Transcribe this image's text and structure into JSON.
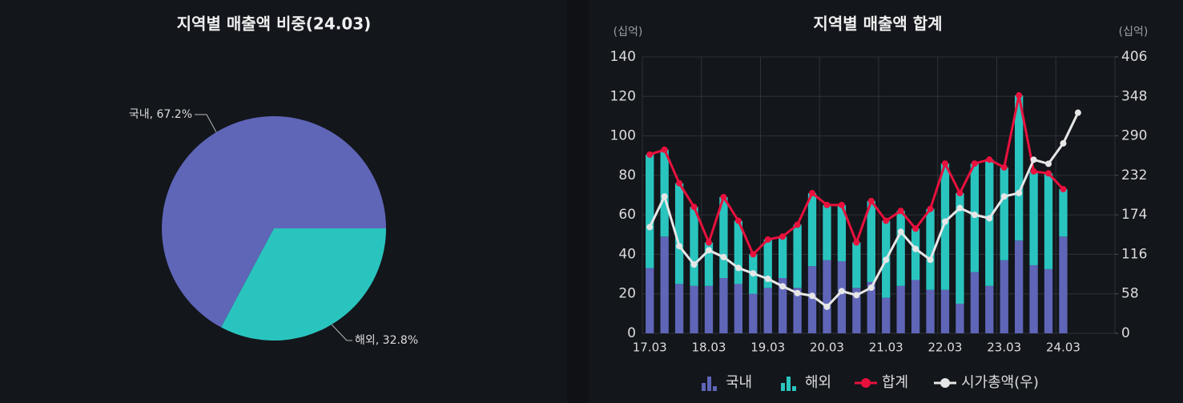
{
  "chart_data": [
    {
      "type": "pie",
      "title": "지역별 매출액 비중(24.03)",
      "categories": [
        "국내",
        "해외"
      ],
      "values": [
        67.2,
        32.8
      ],
      "value_labels": [
        "국내, 67.2%",
        "해외, 32.8%"
      ],
      "colors": [
        "#5f65b7",
        "#2ac4bf"
      ]
    },
    {
      "type": "bar",
      "title": "지역별 매출액 합계",
      "y_label": "(십억)",
      "y2_label": "(십억)",
      "categories": [
        "17.03",
        null,
        null,
        null,
        "18.03",
        null,
        null,
        null,
        "19.03",
        null,
        null,
        null,
        "20.03",
        null,
        null,
        null,
        "21.03",
        null,
        null,
        null,
        "22.03",
        null,
        null,
        null,
        "23.03",
        null,
        null,
        null,
        "24.03",
        null
      ],
      "series": [
        {
          "name": "국내",
          "type": "bar",
          "color": "#5f65b7",
          "values": [
            33,
            49,
            25,
            24,
            24,
            28,
            25,
            20,
            23,
            28,
            23,
            34,
            37,
            36.5,
            23,
            26,
            18,
            24,
            27,
            22,
            22,
            15,
            31,
            24,
            37,
            47,
            34.5,
            32.5,
            49,
            null
          ]
        },
        {
          "name": "해외",
          "type": "bar",
          "color": "#2ac4bf",
          "values": [
            57.5,
            44,
            51,
            40,
            22,
            41,
            32,
            20,
            24.5,
            21,
            32,
            37,
            28,
            28.5,
            23,
            41,
            39,
            38,
            26,
            41,
            64,
            56,
            55,
            64,
            47,
            73.5,
            47.5,
            48.5,
            24,
            null
          ]
        },
        {
          "name": "합계",
          "type": "line",
          "color": "#e8113d",
          "values": [
            90.5,
            93,
            76,
            64,
            46,
            69,
            57,
            40,
            47.5,
            49,
            55,
            71,
            65,
            65,
            46,
            67,
            57,
            62,
            53,
            63,
            86,
            71,
            86,
            88,
            84,
            120.5,
            82,
            81,
            73,
            null
          ]
        },
        {
          "name": "시가총액(우)",
          "type": "line",
          "axis": "y2",
          "color": "#e6e6e6",
          "values": [
            156,
            201,
            128,
            101,
            122,
            112,
            96,
            88,
            80,
            69,
            59,
            55,
            39,
            62,
            56,
            67,
            108,
            149,
            124,
            108,
            164,
            184,
            174,
            169,
            201,
            206,
            255,
            249,
            279,
            324
          ]
        }
      ],
      "ylim": [
        0,
        140
      ],
      "yticks": [
        0,
        20,
        40,
        60,
        80,
        100,
        120,
        140
      ],
      "y2lim": [
        0,
        406
      ],
      "y2ticks": [
        0,
        58,
        116,
        174,
        232,
        290,
        348,
        406
      ],
      "grid": true,
      "legend": "bottom"
    }
  ]
}
